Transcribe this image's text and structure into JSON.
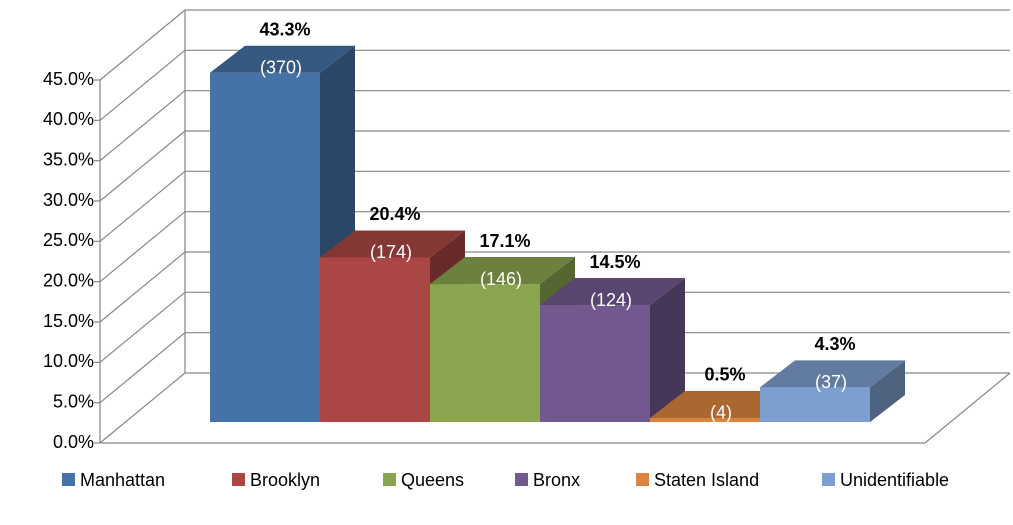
{
  "chart_data": {
    "type": "bar3d",
    "categories": [
      "Manhattan",
      "Brooklyn",
      "Queens",
      "Bronx",
      "Staten Island",
      "Unidentifiable"
    ],
    "values": [
      43.3,
      20.4,
      17.1,
      14.5,
      0.5,
      4.3
    ],
    "value_labels": [
      "43.3%",
      "20.4%",
      "17.1%",
      "14.5%",
      "0.5%",
      "4.3%"
    ],
    "counts": [
      370,
      174,
      146,
      124,
      4,
      37
    ],
    "count_labels": [
      "(370)",
      "(174)",
      "(146)",
      "(124)",
      "(4)",
      "(37)"
    ],
    "colors": [
      "#4572a7",
      "#aa4643",
      "#89a54e",
      "#71588f",
      "#db843d",
      "#7d9fcf"
    ],
    "ylim": [
      0,
      45
    ],
    "yticks": [
      {
        "value": 0,
        "label": "0.0%"
      },
      {
        "value": 5,
        "label": "5.0%"
      },
      {
        "value": 10,
        "label": "10.0%"
      },
      {
        "value": 15,
        "label": "15.0%"
      },
      {
        "value": 20,
        "label": "20.0%"
      },
      {
        "value": 25,
        "label": "25.0%"
      },
      {
        "value": 30,
        "label": "30.0%"
      },
      {
        "value": 35,
        "label": "35.0%"
      },
      {
        "value": 40,
        "label": "40.0%"
      },
      {
        "value": 45,
        "label": "45.0%"
      }
    ],
    "grid": true,
    "legend": "bottom"
  }
}
